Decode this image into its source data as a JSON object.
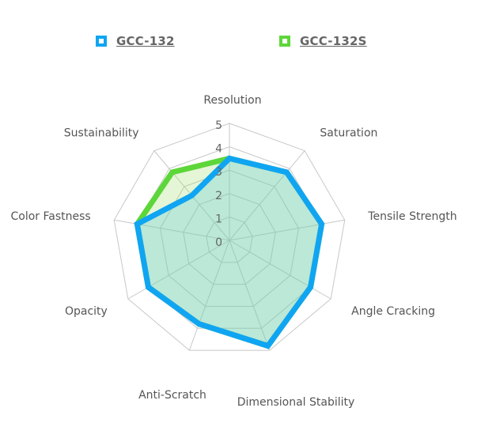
{
  "chart_data": {
    "type": "radar",
    "title": "",
    "axes": [
      "Resolution",
      "Saturation",
      "Tensile Strength",
      "Angle Cracking",
      "Dimensional Stability",
      "Anti-Scratch",
      "Opacity",
      "Color Fastness",
      "Sustainability"
    ],
    "rlim": [
      0,
      5
    ],
    "ticks": [
      "0",
      "1",
      "2",
      "3",
      "4",
      "5"
    ],
    "grid": true,
    "legend_position": "top",
    "series": [
      {
        "name": "GCC-132S",
        "color": "#5dd63a",
        "fill": "rgba(150,220,90,0.25)",
        "values": [
          3.5,
          3.8,
          4.0,
          4.0,
          4.8,
          3.8,
          4.0,
          4.0,
          3.8
        ]
      },
      {
        "name": "GCC-132",
        "color": "#10a5f2",
        "fill": "rgba(90,200,220,0.30)",
        "values": [
          3.5,
          3.8,
          4.0,
          4.0,
          4.8,
          3.8,
          4.0,
          4.0,
          2.5
        ]
      }
    ]
  },
  "legend": {
    "items": [
      {
        "label": "GCC-132",
        "color": "#10a5f2"
      },
      {
        "label": "GCC-132S",
        "color": "#5dd63a"
      }
    ]
  }
}
